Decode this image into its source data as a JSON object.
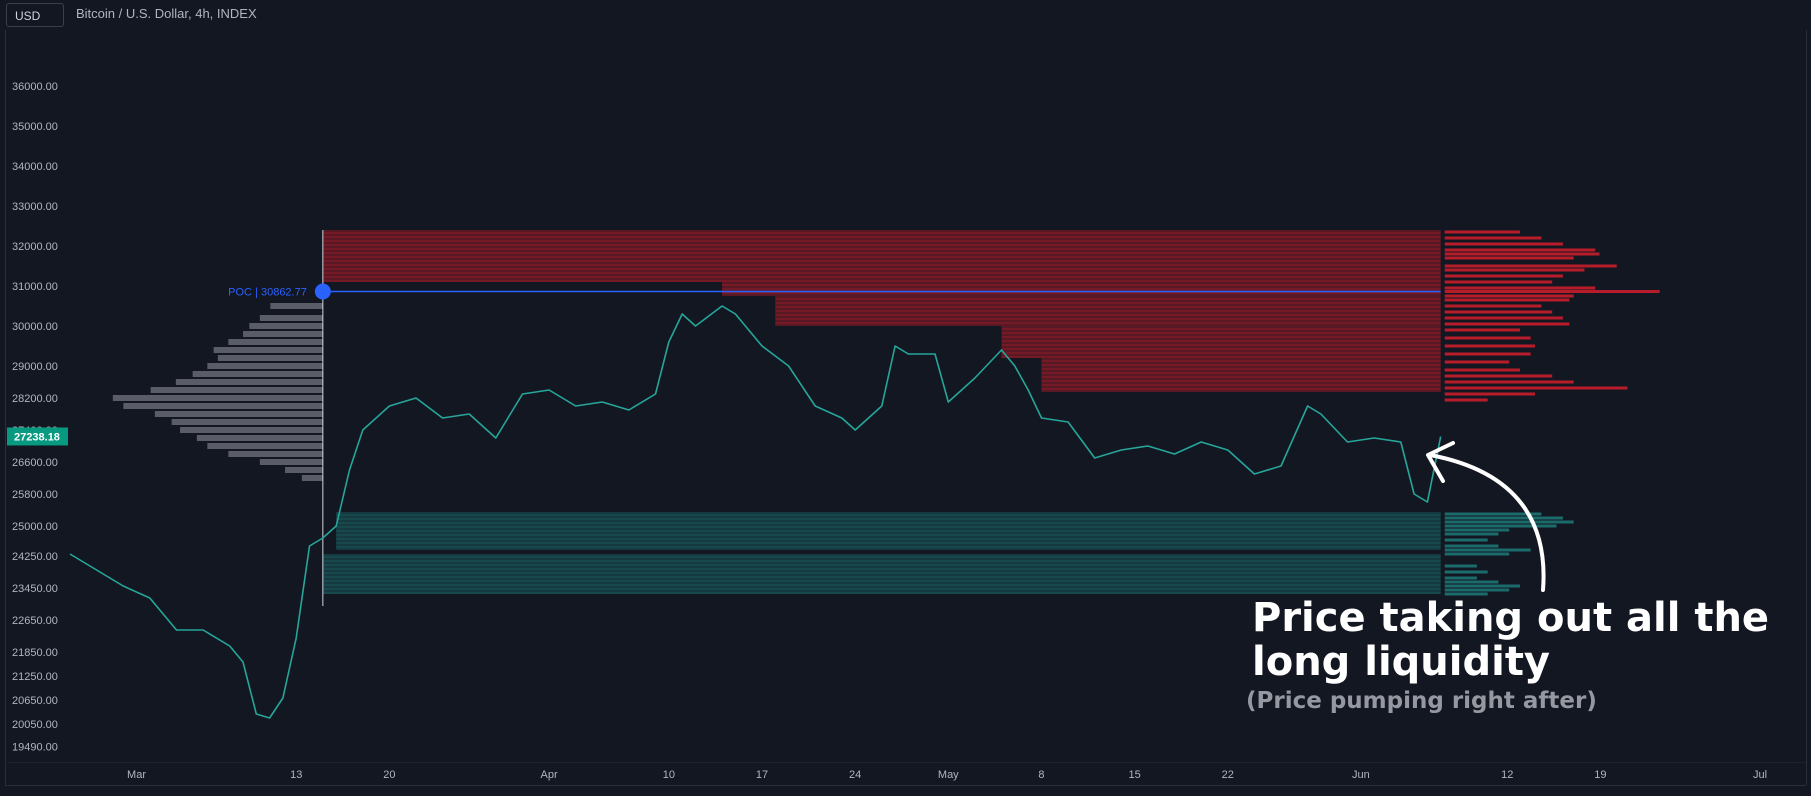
{
  "header": {
    "currency_label": "USD",
    "symbol_title": "Bitcoin / U.S. Dollar, 4h, INDEX"
  },
  "annotation": {
    "main_line1": "Price taking out all the",
    "main_line2": " long liquidity",
    "sub": "(Price pumping right after)"
  },
  "colors": {
    "background": "#131722",
    "candle_up": "#26a69a",
    "candle_down": "#26a69a",
    "short_liquidity": "#b71c2a",
    "long_liquidity": "#1b6b6b",
    "volume_profile": "#9598a1",
    "poc_line": "#2962ff",
    "price_label": "#089981"
  },
  "chart_data": {
    "type": "line",
    "title": "Bitcoin / U.S. Dollar, 4h, INDEX",
    "xlabel": "",
    "ylabel": "",
    "ylim": [
      19100,
      37400
    ],
    "y_ticks": [
      {
        "value": 36000,
        "label": "36000.00"
      },
      {
        "value": 35000,
        "label": "35000.00"
      },
      {
        "value": 34000,
        "label": "34000.00"
      },
      {
        "value": 33000,
        "label": "33000.00"
      },
      {
        "value": 32000,
        "label": "32000.00"
      },
      {
        "value": 31000,
        "label": "31000.00"
      },
      {
        "value": 30000,
        "label": "30000.00"
      },
      {
        "value": 29000,
        "label": "29000.00"
      },
      {
        "value": 28200,
        "label": "28200.00"
      },
      {
        "value": 27400,
        "label": "27400.00"
      },
      {
        "value": 26600,
        "label": "26600.00"
      },
      {
        "value": 25800,
        "label": "25800.00"
      },
      {
        "value": 25000,
        "label": "25000.00"
      },
      {
        "value": 24250,
        "label": "24250.00"
      },
      {
        "value": 23450,
        "label": "23450.00"
      },
      {
        "value": 22650,
        "label": "22650.00"
      },
      {
        "value": 21850,
        "label": "21850.00"
      },
      {
        "value": 21250,
        "label": "21250.00"
      },
      {
        "value": 20650,
        "label": "20650.00"
      },
      {
        "value": 20050,
        "label": "20050.00"
      },
      {
        "value": 19490,
        "label": "19490.00"
      }
    ],
    "x_range": [
      "2023-02-24",
      "2023-07-04"
    ],
    "x_ticks": [
      {
        "date": "2023-03-01",
        "label": "Mar"
      },
      {
        "date": "2023-03-13",
        "label": "13"
      },
      {
        "date": "2023-03-20",
        "label": "20"
      },
      {
        "date": "2023-04-01",
        "label": "Apr"
      },
      {
        "date": "2023-04-10",
        "label": "10"
      },
      {
        "date": "2023-04-17",
        "label": "17"
      },
      {
        "date": "2023-04-24",
        "label": "24"
      },
      {
        "date": "2023-05-01",
        "label": "May"
      },
      {
        "date": "2023-05-08",
        "label": "8"
      },
      {
        "date": "2023-05-15",
        "label": "15"
      },
      {
        "date": "2023-05-22",
        "label": "22"
      },
      {
        "date": "2023-06-01",
        "label": "Jun"
      },
      {
        "date": "2023-06-12",
        "label": "12"
      },
      {
        "date": "2023-06-19",
        "label": "19"
      },
      {
        "date": "2023-07-01",
        "label": "Jul"
      }
    ],
    "last_price": {
      "value": 27238.18,
      "label": "27238.18"
    },
    "poc": {
      "value": 30862.77,
      "label": "POC | 30862.77",
      "date": "2023-03-15"
    },
    "series": [
      {
        "points": [
          [
            "2023-02-24",
            24300
          ],
          [
            "2023-02-26",
            23900
          ],
          [
            "2023-02-28",
            23500
          ],
          [
            "2023-03-02",
            23200
          ],
          [
            "2023-03-04",
            22400
          ],
          [
            "2023-03-06",
            22400
          ],
          [
            "2023-03-08",
            22000
          ],
          [
            "2023-03-09",
            21600
          ],
          [
            "2023-03-10",
            20300
          ],
          [
            "2023-03-11",
            20200
          ],
          [
            "2023-03-12",
            20700
          ],
          [
            "2023-03-13",
            22200
          ],
          [
            "2023-03-14",
            24500
          ],
          [
            "2023-03-15",
            24700
          ],
          [
            "2023-03-16",
            25000
          ],
          [
            "2023-03-17",
            26400
          ],
          [
            "2023-03-18",
            27400
          ],
          [
            "2023-03-20",
            28000
          ],
          [
            "2023-03-22",
            28200
          ],
          [
            "2023-03-24",
            27700
          ],
          [
            "2023-03-26",
            27800
          ],
          [
            "2023-03-28",
            27200
          ],
          [
            "2023-03-30",
            28300
          ],
          [
            "2023-04-01",
            28400
          ],
          [
            "2023-04-03",
            28000
          ],
          [
            "2023-04-05",
            28100
          ],
          [
            "2023-04-07",
            27900
          ],
          [
            "2023-04-09",
            28300
          ],
          [
            "2023-04-10",
            29600
          ],
          [
            "2023-04-11",
            30300
          ],
          [
            "2023-04-12",
            30000
          ],
          [
            "2023-04-14",
            30500
          ],
          [
            "2023-04-15",
            30300
          ],
          [
            "2023-04-17",
            29500
          ],
          [
            "2023-04-19",
            29000
          ],
          [
            "2023-04-21",
            28000
          ],
          [
            "2023-04-23",
            27700
          ],
          [
            "2023-04-24",
            27400
          ],
          [
            "2023-04-26",
            28000
          ],
          [
            "2023-04-27",
            29500
          ],
          [
            "2023-04-28",
            29300
          ],
          [
            "2023-04-30",
            29300
          ],
          [
            "2023-05-01",
            28100
          ],
          [
            "2023-05-03",
            28700
          ],
          [
            "2023-05-05",
            29400
          ],
          [
            "2023-05-06",
            29000
          ],
          [
            "2023-05-07",
            28400
          ],
          [
            "2023-05-08",
            27700
          ],
          [
            "2023-05-10",
            27600
          ],
          [
            "2023-05-12",
            26700
          ],
          [
            "2023-05-14",
            26900
          ],
          [
            "2023-05-16",
            27000
          ],
          [
            "2023-05-18",
            26800
          ],
          [
            "2023-05-20",
            27100
          ],
          [
            "2023-05-22",
            26900
          ],
          [
            "2023-05-24",
            26300
          ],
          [
            "2023-05-26",
            26500
          ],
          [
            "2023-05-28",
            28000
          ],
          [
            "2023-05-29",
            27800
          ],
          [
            "2023-05-31",
            27100
          ],
          [
            "2023-06-02",
            27200
          ],
          [
            "2023-06-04",
            27100
          ],
          [
            "2023-06-05",
            25800
          ],
          [
            "2023-06-06",
            25600
          ],
          [
            "2023-06-07",
            27238.18
          ]
        ]
      }
    ],
    "short_liquidity_levels": [
      {
        "start": "2023-03-15",
        "from": 31100,
        "to": 32400
      },
      {
        "start": "2023-04-14",
        "from": 30750,
        "to": 31100
      },
      {
        "start": "2023-04-18",
        "from": 30000,
        "to": 30750
      },
      {
        "start": "2023-05-05",
        "from": 29200,
        "to": 30000
      },
      {
        "start": "2023-05-08",
        "from": 28350,
        "to": 29200
      }
    ],
    "long_liquidity_levels": [
      {
        "start": "2023-03-16",
        "from": 24400,
        "to": 25350
      },
      {
        "start": "2023-03-15",
        "from": 23300,
        "to": 24300
      }
    ],
    "short_liquidity_profile": [
      {
        "price": 32350,
        "size": 0.35
      },
      {
        "price": 32200,
        "size": 0.45
      },
      {
        "price": 32050,
        "size": 0.55
      },
      {
        "price": 31900,
        "size": 0.7
      },
      {
        "price": 31800,
        "size": 0.72
      },
      {
        "price": 31700,
        "size": 0.6
      },
      {
        "price": 31500,
        "size": 0.8
      },
      {
        "price": 31400,
        "size": 0.65
      },
      {
        "price": 31250,
        "size": 0.55
      },
      {
        "price": 31100,
        "size": 0.5
      },
      {
        "price": 30950,
        "size": 0.7
      },
      {
        "price": 30862,
        "size": 1.0
      },
      {
        "price": 30750,
        "size": 0.6
      },
      {
        "price": 30650,
        "size": 0.58
      },
      {
        "price": 30500,
        "size": 0.45
      },
      {
        "price": 30350,
        "size": 0.5
      },
      {
        "price": 30200,
        "size": 0.55
      },
      {
        "price": 30050,
        "size": 0.58
      },
      {
        "price": 29900,
        "size": 0.35
      },
      {
        "price": 29700,
        "size": 0.4
      },
      {
        "price": 29500,
        "size": 0.42
      },
      {
        "price": 29300,
        "size": 0.4
      },
      {
        "price": 29100,
        "size": 0.3
      },
      {
        "price": 28900,
        "size": 0.35
      },
      {
        "price": 28750,
        "size": 0.5
      },
      {
        "price": 28600,
        "size": 0.6
      },
      {
        "price": 28450,
        "size": 0.85
      },
      {
        "price": 28300,
        "size": 0.42
      },
      {
        "price": 28150,
        "size": 0.2
      }
    ],
    "long_liquidity_profile": [
      {
        "price": 25300,
        "size": 0.45
      },
      {
        "price": 25200,
        "size": 0.55
      },
      {
        "price": 25100,
        "size": 0.6
      },
      {
        "price": 25000,
        "size": 0.52
      },
      {
        "price": 24900,
        "size": 0.3
      },
      {
        "price": 24800,
        "size": 0.25
      },
      {
        "price": 24650,
        "size": 0.2
      },
      {
        "price": 24500,
        "size": 0.25
      },
      {
        "price": 24400,
        "size": 0.4
      },
      {
        "price": 24300,
        "size": 0.3
      },
      {
        "price": 24000,
        "size": 0.15
      },
      {
        "price": 23850,
        "size": 0.2
      },
      {
        "price": 23700,
        "size": 0.15
      },
      {
        "price": 23600,
        "size": 0.25
      },
      {
        "price": 23500,
        "size": 0.35
      },
      {
        "price": 23400,
        "size": 0.3
      },
      {
        "price": 23300,
        "size": 0.2
      }
    ],
    "volume_profile": [
      {
        "price": 30500,
        "size": 0.25
      },
      {
        "price": 30200,
        "size": 0.3
      },
      {
        "price": 30000,
        "size": 0.35
      },
      {
        "price": 29800,
        "size": 0.38
      },
      {
        "price": 29600,
        "size": 0.45
      },
      {
        "price": 29400,
        "size": 0.52
      },
      {
        "price": 29200,
        "size": 0.5
      },
      {
        "price": 29000,
        "size": 0.55
      },
      {
        "price": 28800,
        "size": 0.62
      },
      {
        "price": 28600,
        "size": 0.7
      },
      {
        "price": 28400,
        "size": 0.82
      },
      {
        "price": 28200,
        "size": 1.0
      },
      {
        "price": 28000,
        "size": 0.95
      },
      {
        "price": 27800,
        "size": 0.8
      },
      {
        "price": 27600,
        "size": 0.72
      },
      {
        "price": 27400,
        "size": 0.68
      },
      {
        "price": 27200,
        "size": 0.6
      },
      {
        "price": 27000,
        "size": 0.55
      },
      {
        "price": 26800,
        "size": 0.45
      },
      {
        "price": 26600,
        "size": 0.3
      },
      {
        "price": 26400,
        "size": 0.18
      },
      {
        "price": 26200,
        "size": 0.1
      }
    ]
  }
}
